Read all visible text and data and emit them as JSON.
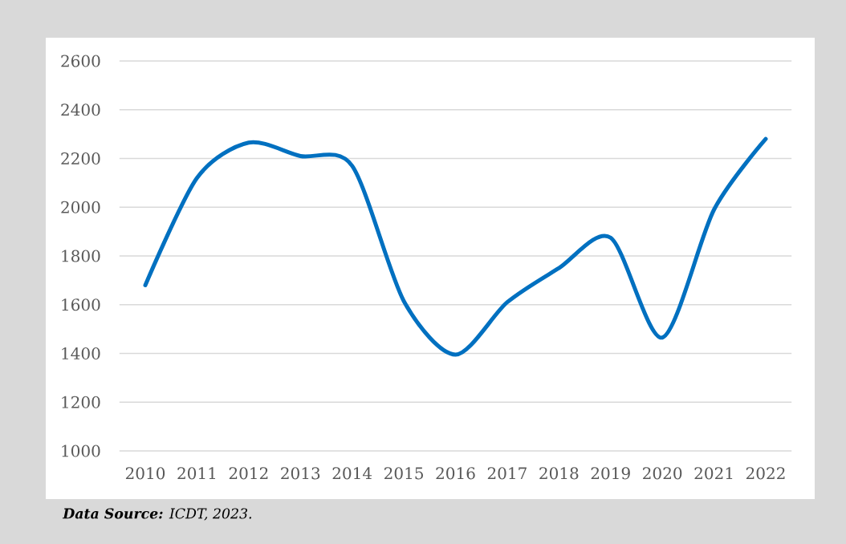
{
  "chart_data": {
    "type": "line",
    "categories": [
      "2010",
      "2011",
      "2012",
      "2013",
      "2014",
      "2015",
      "2016",
      "2017",
      "2018",
      "2019",
      "2020",
      "2021",
      "2022"
    ],
    "series": [
      {
        "color": "#0070c0",
        "values": [
          1680,
          2120,
          2265,
          2210,
          2170,
          1615,
          1395,
          1610,
          1750,
          1875,
          1465,
          1990,
          2280
        ]
      }
    ],
    "ylim": [
      1000,
      2600
    ],
    "yticks": [
      1000,
      1200,
      1400,
      1600,
      1800,
      2000,
      2200,
      2400,
      2600
    ],
    "grid": "y",
    "line_style": "solid",
    "annotations": [
      "**Data Source:** ICDT, 2023."
    ]
  }
}
